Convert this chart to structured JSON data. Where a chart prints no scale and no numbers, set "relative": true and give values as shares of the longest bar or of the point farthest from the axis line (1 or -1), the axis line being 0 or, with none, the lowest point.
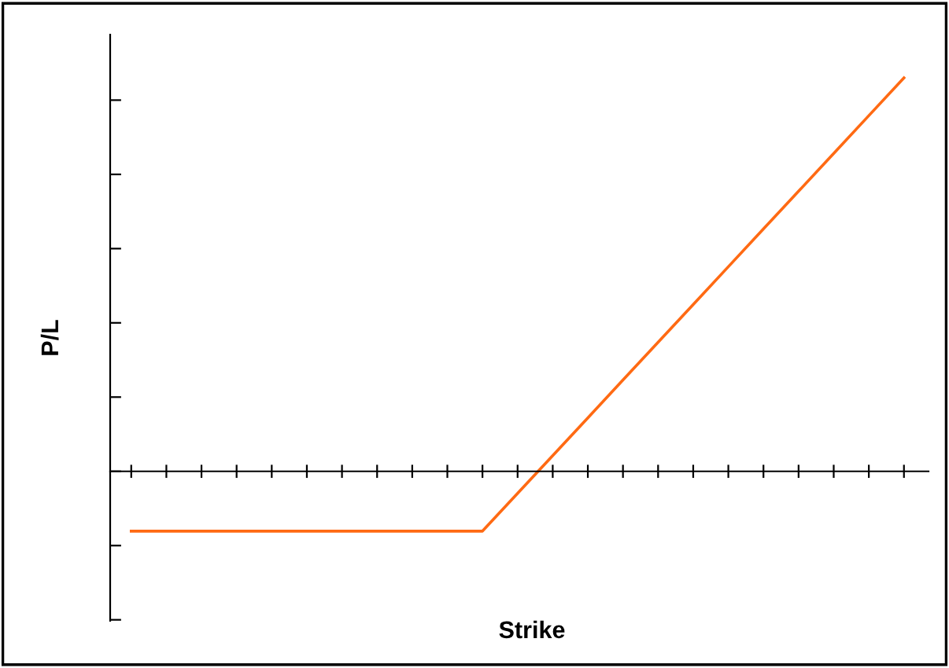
{
  "chart_data": {
    "type": "line",
    "xlabel": "Strike",
    "ylabel": "P/L",
    "relative": true,
    "tick_labels": false,
    "grid": false,
    "categories": [
      null,
      null,
      null,
      null,
      null,
      null,
      null,
      null,
      null,
      null,
      null,
      null,
      null,
      null,
      null,
      null,
      null,
      null,
      null,
      null,
      null,
      null,
      null
    ],
    "series": [
      {
        "color": "#ff6a13",
        "values": [
          -0.152,
          -0.152,
          -0.152,
          -0.152,
          -0.152,
          -0.152,
          -0.152,
          -0.152,
          -0.152,
          -0.152,
          -0.152,
          -0.056,
          0.04,
          0.136,
          0.232,
          0.328,
          0.424,
          0.52,
          0.616,
          0.712,
          0.808,
          0.904,
          1
        ]
      }
    ]
  }
}
